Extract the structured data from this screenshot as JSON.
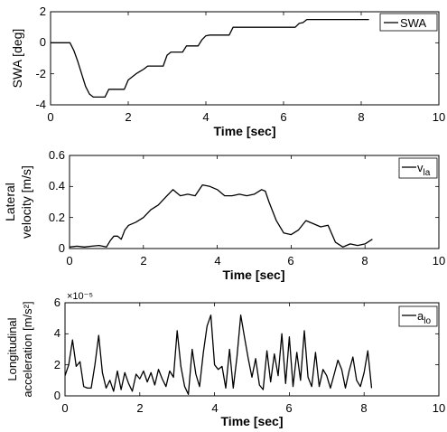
{
  "chart_data": [
    {
      "type": "line",
      "xlabel": "Time [sec]",
      "ylabel": "SWA [deg]",
      "xlim": [
        0,
        10
      ],
      "ylim": [
        -4,
        2
      ],
      "xticks": [
        "0",
        "2",
        "4",
        "6",
        "8",
        "10"
      ],
      "yticks": [
        "-4",
        "-2",
        "0",
        "2"
      ],
      "grid": false,
      "legend_position": "top-right",
      "series": [
        {
          "name": "SWA",
          "color": "#000000",
          "x": [
            0,
            0.5,
            0.6,
            0.7,
            0.8,
            0.9,
            1.0,
            1.1,
            1.4,
            1.5,
            1.6,
            1.9,
            2.0,
            2.1,
            2.2,
            2.3,
            2.4,
            2.5,
            2.6,
            2.7,
            2.8,
            2.9,
            3.0,
            3.1,
            3.2,
            3.4,
            3.5,
            3.6,
            3.8,
            3.9,
            4.0,
            4.1,
            4.2,
            4.6,
            4.7,
            6.3,
            6.4,
            6.5,
            6.6,
            8.2
          ],
          "y": [
            0,
            0,
            -0.5,
            -1.2,
            -2.0,
            -2.8,
            -3.3,
            -3.5,
            -3.5,
            -3.0,
            -3.0,
            -3.0,
            -2.4,
            -2.2,
            -2.0,
            -1.85,
            -1.7,
            -1.5,
            -1.5,
            -1.5,
            -1.5,
            -1.5,
            -0.8,
            -0.6,
            -0.6,
            -0.6,
            -0.2,
            -0.2,
            -0.2,
            0.2,
            0.45,
            0.5,
            0.5,
            0.5,
            1.0,
            1.0,
            1.25,
            1.3,
            1.5,
            1.5
          ]
        }
      ]
    },
    {
      "type": "line",
      "xlabel": "Time [sec]",
      "ylabel": [
        "Lateral",
        "velocity [m/s]"
      ],
      "xlim": [
        0,
        10
      ],
      "ylim": [
        0,
        0.6
      ],
      "xticks": [
        "0",
        "2",
        "4",
        "6",
        "8",
        "10"
      ],
      "yticks": [
        "0",
        "0.2",
        "0.4",
        "0.6"
      ],
      "grid": false,
      "legend_position": "top-right",
      "series": [
        {
          "name": "v",
          "name_subscript": "la",
          "color": "#000000",
          "x": [
            0,
            0.2,
            0.4,
            0.6,
            0.8,
            1.0,
            1.1,
            1.2,
            1.3,
            1.4,
            1.5,
            1.6,
            1.8,
            2.0,
            2.2,
            2.4,
            2.6,
            2.8,
            2.9,
            3.0,
            3.2,
            3.4,
            3.6,
            3.8,
            4.0,
            4.2,
            4.4,
            4.6,
            4.8,
            5.0,
            5.2,
            5.3,
            5.4,
            5.6,
            5.8,
            6.0,
            6.2,
            6.4,
            6.6,
            6.8,
            7.0,
            7.2,
            7.4,
            7.6,
            7.8,
            8.0,
            8.2
          ],
          "y": [
            0.01,
            0.015,
            0.01,
            0.015,
            0.02,
            0.01,
            0.05,
            0.08,
            0.08,
            0.06,
            0.12,
            0.15,
            0.17,
            0.2,
            0.25,
            0.28,
            0.33,
            0.38,
            0.36,
            0.34,
            0.35,
            0.34,
            0.41,
            0.4,
            0.38,
            0.34,
            0.34,
            0.35,
            0.34,
            0.35,
            0.38,
            0.37,
            0.3,
            0.18,
            0.1,
            0.09,
            0.12,
            0.18,
            0.16,
            0.14,
            0.15,
            0.04,
            0.01,
            0.03,
            0.02,
            0.03,
            0.06
          ]
        }
      ]
    },
    {
      "type": "line",
      "xlabel": "Time [sec]",
      "ylabel": [
        "Longitudinal",
        "acceleration [m/s²]"
      ],
      "y_exponent": "×10⁻⁵",
      "xlim": [
        0,
        10
      ],
      "ylim": [
        0,
        6
      ],
      "xticks": [
        "0",
        "2",
        "4",
        "6",
        "8",
        "10"
      ],
      "yticks": [
        "0",
        "2",
        "4",
        "6"
      ],
      "grid": false,
      "legend_position": "top-right",
      "series": [
        {
          "name": "a",
          "name_subscript": "lo",
          "color": "#000000",
          "x": [
            0.0,
            0.1,
            0.2,
            0.3,
            0.4,
            0.5,
            0.6,
            0.7,
            0.8,
            0.9,
            1.0,
            1.1,
            1.2,
            1.3,
            1.4,
            1.5,
            1.6,
            1.7,
            1.8,
            1.9,
            2.0,
            2.1,
            2.2,
            2.3,
            2.4,
            2.5,
            2.6,
            2.7,
            2.8,
            2.9,
            3.0,
            3.1,
            3.2,
            3.3,
            3.4,
            3.5,
            3.6,
            3.7,
            3.8,
            3.9,
            4.0,
            4.1,
            4.2,
            4.3,
            4.4,
            4.5,
            4.6,
            4.7,
            4.8,
            4.9,
            5.0,
            5.1,
            5.2,
            5.3,
            5.4,
            5.5,
            5.6,
            5.7,
            5.8,
            5.9,
            6.0,
            6.1,
            6.2,
            6.3,
            6.4,
            6.5,
            6.6,
            6.7,
            6.8,
            6.9,
            7.0,
            7.1,
            7.2,
            7.3,
            7.4,
            7.5,
            7.6,
            7.7,
            7.8,
            7.9,
            8.0,
            8.1,
            8.2
          ],
          "y": [
            1.3,
            2.0,
            3.6,
            1.9,
            2.2,
            0.6,
            0.5,
            0.5,
            2.0,
            3.9,
            1.5,
            0.5,
            1.0,
            0.3,
            1.6,
            0.4,
            1.5,
            0.8,
            0.3,
            1.4,
            1.1,
            1.6,
            0.9,
            1.5,
            0.7,
            1.7,
            1.1,
            0.6,
            1.6,
            1.2,
            4.2,
            1.9,
            0.6,
            0.1,
            3.0,
            1.4,
            0.6,
            2.8,
            4.5,
            5.2,
            2.0,
            1.7,
            1.9,
            0.5,
            3.0,
            0.5,
            2.5,
            5.2,
            3.8,
            2.4,
            1.2,
            2.4,
            0.7,
            0.4,
            2.9,
            0.9,
            2.7,
            1.3,
            4.0,
            0.8,
            3.8,
            0.6,
            2.8,
            1.0,
            4.2,
            1.2,
            0.6,
            2.8,
            0.6,
            1.7,
            1.3,
            0.5,
            1.4,
            2.3,
            1.7,
            0.5,
            1.6,
            2.5,
            1.0,
            0.6,
            1.5,
            2.9,
            0.5
          ]
        }
      ]
    }
  ]
}
